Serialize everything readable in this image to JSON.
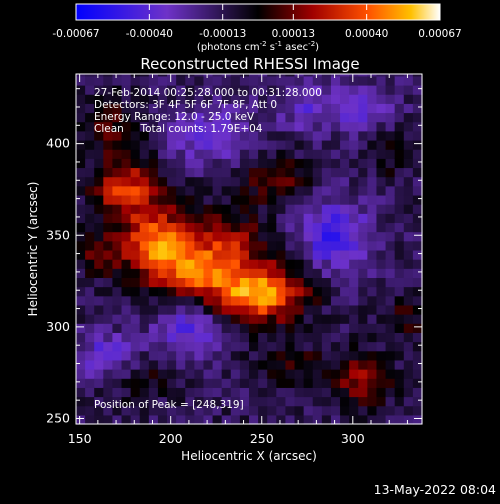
{
  "chart_data": {
    "type": "heatmap",
    "title": "Reconstructed RHESSI Image",
    "xlabel": "Heliocentric X (arcsec)",
    "ylabel": "Heliocentric Y (arcsec)",
    "xlim": [
      148,
      338
    ],
    "ylim": [
      247,
      438
    ],
    "x_ticks": [
      150,
      200,
      250,
      300
    ],
    "y_ticks": [
      250,
      300,
      350,
      400
    ],
    "colorbar": {
      "range": [
        -0.00067,
        0.00067
      ],
      "tick_values": [
        -0.00067,
        -0.0004,
        -0.00013,
        0.00013,
        0.0004,
        0.00067
      ],
      "tick_labels": [
        "-0.00067",
        "-0.00040",
        "-0.00013",
        "0.00013",
        "0.00040",
        "0.00067"
      ],
      "unit_label": "(photons cm",
      "unit_exp1": "-2",
      "unit_mid": " s",
      "unit_exp2": "-1",
      "unit_tail": " asec",
      "unit_exp3": "-2",
      "unit_close": ")"
    },
    "annotations": {
      "time_range": "27-Feb-2014 00:25:28.000 to 00:31:28.000",
      "detectors": "Detectors: 3F 4F 5F 6F 7F 8F, Att 0",
      "energy": "Energy Range: 12.0 - 25.0 keV",
      "clean": "Clean     Total counts: 1.79E+04",
      "peak": "Position of Peak = [248,319]"
    },
    "peak": [
      248,
      319
    ],
    "sources": [
      {
        "x": 248,
        "y": 319,
        "amp": 0.00067,
        "sx": 18,
        "sy": 11
      },
      {
        "x": 193,
        "y": 345,
        "amp": 0.00058,
        "sx": 14,
        "sy": 14
      },
      {
        "x": 175,
        "y": 376,
        "amp": 0.00046,
        "sx": 13,
        "sy": 11
      },
      {
        "x": 215,
        "y": 330,
        "amp": 0.0004,
        "sx": 14,
        "sy": 10
      },
      {
        "x": 232,
        "y": 347,
        "amp": 0.00032,
        "sx": 14,
        "sy": 11
      },
      {
        "x": 168,
        "y": 410,
        "amp": 0.00022,
        "sx": 12,
        "sy": 11
      },
      {
        "x": 258,
        "y": 380,
        "amp": 0.00024,
        "sx": 14,
        "sy": 10
      },
      {
        "x": 160,
        "y": 340,
        "amp": 0.0002,
        "sx": 9,
        "sy": 9
      },
      {
        "x": 305,
        "y": 272,
        "amp": 0.0003,
        "sx": 12,
        "sy": 10
      },
      {
        "x": 265,
        "y": 280,
        "amp": 0.0002,
        "sx": 12,
        "sy": 8
      },
      {
        "x": 330,
        "y": 305,
        "amp": 0.00016,
        "sx": 9,
        "sy": 9
      },
      {
        "x": 320,
        "y": 395,
        "amp": 0.00015,
        "sx": 10,
        "sy": 9
      },
      {
        "x": 185,
        "y": 270,
        "amp": 0.00014,
        "sx": 12,
        "sy": 8
      },
      {
        "x": 210,
        "y": 300,
        "amp": -0.0003,
        "sx": 12,
        "sy": 10
      },
      {
        "x": 290,
        "y": 350,
        "amp": -0.00034,
        "sx": 14,
        "sy": 14
      },
      {
        "x": 220,
        "y": 405,
        "amp": -0.00026,
        "sx": 16,
        "sy": 11
      },
      {
        "x": 165,
        "y": 285,
        "amp": -0.00026,
        "sx": 11,
        "sy": 9
      },
      {
        "x": 305,
        "y": 420,
        "amp": -0.00022,
        "sx": 12,
        "sy": 10
      },
      {
        "x": 275,
        "y": 420,
        "amp": -0.0002,
        "sx": 12,
        "sy": 9
      }
    ]
  },
  "footer": {
    "timestamp": "13-May-2022 08:04"
  }
}
